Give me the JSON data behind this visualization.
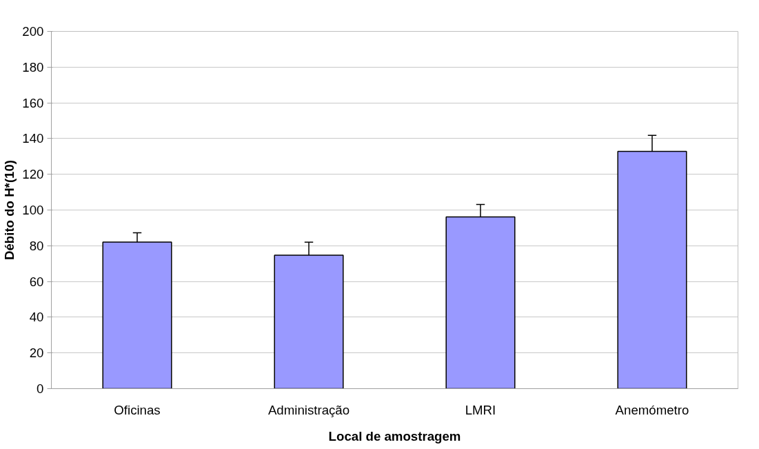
{
  "chart_data": {
    "type": "bar",
    "xlabel": "Local de amostragem",
    "ylabel": "Débito do H*(10)",
    "categories": [
      "Oficinas",
      "Administração",
      "LMRI",
      "Anemómetro"
    ],
    "values": [
      82.0,
      74.7,
      96.1,
      132.8
    ],
    "errors": [
      [
        82.0,
        87.3
      ],
      [
        74.7,
        82.0
      ],
      [
        96.1,
        103.1
      ],
      [
        132.8,
        141.8
      ]
    ],
    "color": "#9999ff",
    "ylim": [
      0,
      200
    ],
    "yticks": [
      0,
      20,
      40,
      60,
      80,
      100,
      120,
      140,
      160,
      180,
      200
    ],
    "grid": "y"
  }
}
